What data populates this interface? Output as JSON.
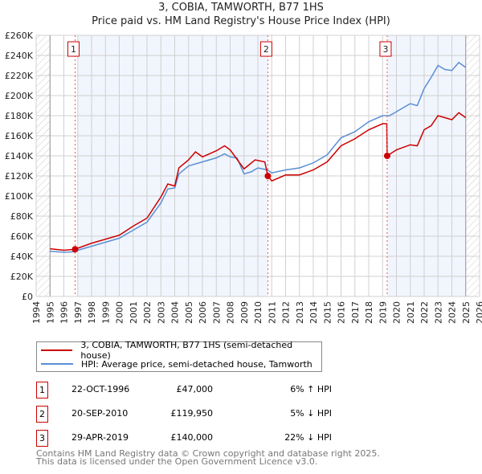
{
  "chart_data": {
    "type": "line",
    "title": "3, COBIA, TAMWORTH, B77 1HS",
    "subtitle": "Price paid vs. HM Land Registry's House Price Index (HPI)",
    "xlim": [
      1994,
      2026
    ],
    "ylim": [
      0,
      260000
    ],
    "x_ticks": [
      "1994",
      "1995",
      "1996",
      "1997",
      "1998",
      "1999",
      "2000",
      "2001",
      "2002",
      "2003",
      "2004",
      "2005",
      "2006",
      "2007",
      "2008",
      "2009",
      "2010",
      "2011",
      "2012",
      "2013",
      "2014",
      "2015",
      "2016",
      "2017",
      "2018",
      "2019",
      "2020",
      "2021",
      "2022",
      "2023",
      "2024",
      "2025",
      "2026"
    ],
    "y_ticks": [
      {
        "v": 0,
        "l": "£0"
      },
      {
        "v": 20000,
        "l": "£20K"
      },
      {
        "v": 40000,
        "l": "£40K"
      },
      {
        "v": 60000,
        "l": "£60K"
      },
      {
        "v": 80000,
        "l": "£80K"
      },
      {
        "v": 100000,
        "l": "£100K"
      },
      {
        "v": 120000,
        "l": "£120K"
      },
      {
        "v": 140000,
        "l": "£140K"
      },
      {
        "v": 160000,
        "l": "£160K"
      },
      {
        "v": 180000,
        "l": "£180K"
      },
      {
        "v": 200000,
        "l": "£200K"
      },
      {
        "v": 220000,
        "l": "£220K"
      },
      {
        "v": 240000,
        "l": "£240K"
      },
      {
        "v": 260000,
        "l": "£260K"
      }
    ],
    "grid": true,
    "series": [
      {
        "name": "3, COBIA, TAMWORTH, B77 1HS (semi-detached house)",
        "color": "#cc0000",
        "x": [
          1995,
          1996,
          1996.8,
          1998,
          1999,
          2000,
          2001,
          2002,
          2003,
          2003.5,
          2004,
          2004.3,
          2005,
          2005.5,
          2006,
          2007,
          2007.6,
          2008,
          2009,
          2009.8,
          2010.5,
          2010.72,
          2011,
          2012,
          2013,
          2014,
          2015,
          2016,
          2017,
          2018,
          2019,
          2019.3,
          2019.33,
          2020,
          2021,
          2021.5,
          2022,
          2022.5,
          2023,
          2024,
          2024.5,
          2025
        ],
        "y": [
          47500,
          46000,
          47000,
          53000,
          57000,
          61000,
          70000,
          78000,
          99000,
          112000,
          110000,
          128000,
          136000,
          144000,
          139000,
          145000,
          150000,
          146000,
          127000,
          136000,
          134000,
          119950,
          115000,
          121000,
          121000,
          126000,
          134000,
          150000,
          157000,
          166000,
          172000,
          172000,
          140000,
          146000,
          151000,
          150000,
          166000,
          170000,
          180000,
          176000,
          183000,
          178000
        ]
      },
      {
        "name": "HPI: Average price, semi-detached house, Tamworth",
        "color": "#5b8fd4",
        "x": [
          1995,
          1996,
          1996.8,
          1997,
          1998,
          1999,
          2000,
          2001,
          2002,
          2003,
          2003.5,
          2004,
          2004.3,
          2005,
          2006,
          2007,
          2007.6,
          2008,
          2008.5,
          2009,
          2009.5,
          2010,
          2010.7,
          2011,
          2012,
          2013,
          2014,
          2015,
          2016,
          2017,
          2018,
          2019,
          2019.5,
          2020,
          2021,
          2021.5,
          2022,
          2022.5,
          2023,
          2023.5,
          2024,
          2024.5,
          2025
        ],
        "y": [
          45000,
          44000,
          44500,
          46000,
          50000,
          54000,
          58000,
          66000,
          74000,
          93000,
          107000,
          108000,
          122000,
          130000,
          134000,
          138000,
          142000,
          139000,
          138000,
          122000,
          124000,
          128000,
          126000,
          123000,
          126000,
          128000,
          133000,
          141000,
          158000,
          164000,
          174000,
          180000,
          180000,
          184000,
          192000,
          190000,
          207000,
          218000,
          230000,
          226000,
          225000,
          233000,
          228000
        ]
      }
    ],
    "sales": [
      {
        "n": "1",
        "x": 1996.81,
        "y": 47000
      },
      {
        "n": "2",
        "x": 2010.72,
        "y": 119950
      },
      {
        "n": "3",
        "x": 2019.33,
        "y": 140000
      }
    ],
    "legend": "below"
  },
  "table": [
    {
      "n": "1",
      "date": "22-OCT-1996",
      "price": "£47,000",
      "hpi": "6% ↑ HPI"
    },
    {
      "n": "2",
      "date": "20-SEP-2010",
      "price": "£119,950",
      "hpi": "5% ↓ HPI"
    },
    {
      "n": "3",
      "date": "29-APR-2019",
      "price": "£140,000",
      "hpi": "22% ↓ HPI"
    }
  ],
  "footer": [
    "Contains HM Land Registry data © Crown copyright and database right 2025.",
    "This data is licensed under the Open Government Licence v3.0."
  ]
}
